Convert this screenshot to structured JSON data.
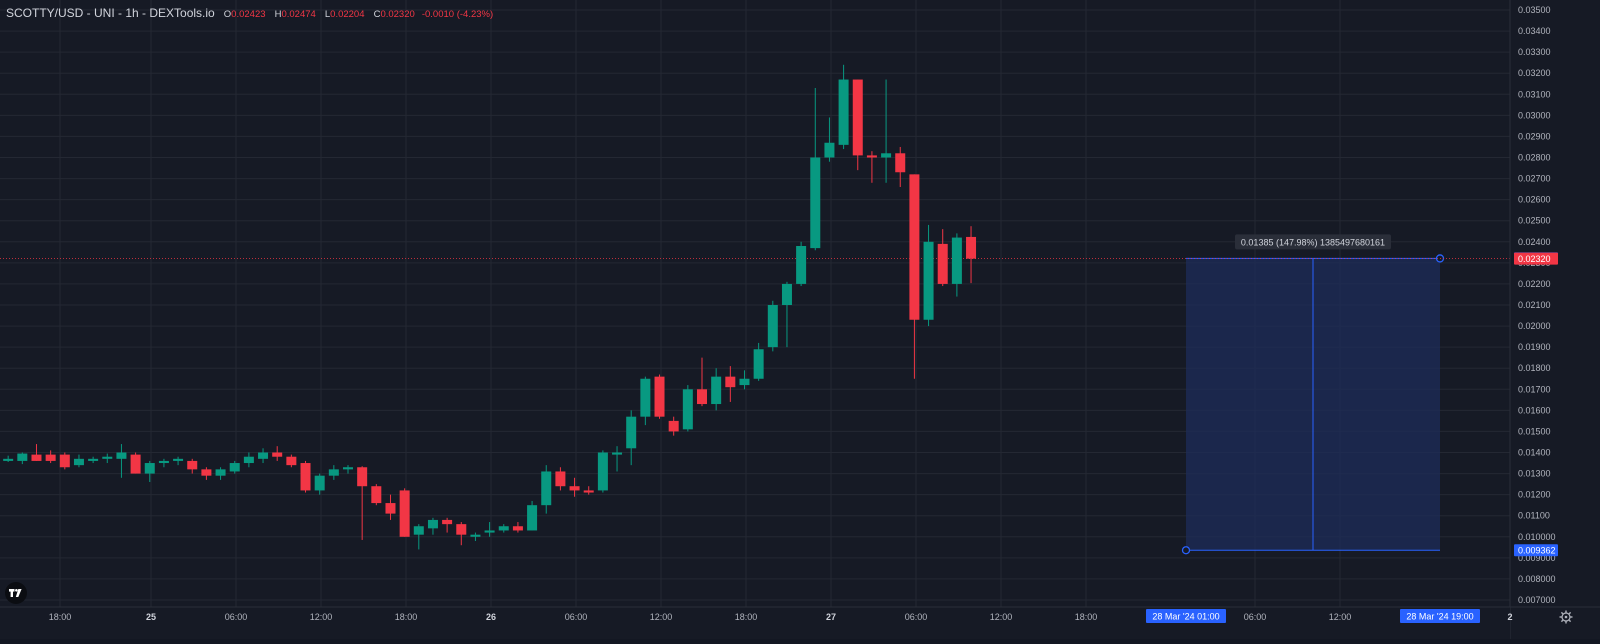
{
  "legend": {
    "symbol": "SCOTTY/USD - UNI - 1h - DEXTools.io",
    "open_label": "O",
    "open": "0.02423",
    "high_label": "H",
    "high": "0.02474",
    "low_label": "L",
    "low": "0.02204",
    "close_label": "C",
    "close": "0.02320",
    "change": "-0.0010 (-4.23%)"
  },
  "colors": {
    "background": "#161a25",
    "grid": "#242833",
    "up": "#089981",
    "down": "#f23645",
    "text": "#b2b5be",
    "tool_blue": "#2962ff"
  },
  "price_scale": {
    "labels": [
      "0.03500",
      "0.03400",
      "0.03300",
      "0.03200",
      "0.03100",
      "0.03000",
      "0.02900",
      "0.02800",
      "0.02700",
      "0.02600",
      "0.02500",
      "0.02400",
      "0.02300",
      "0.02200",
      "0.02100",
      "0.02000",
      "0.01900",
      "0.01800",
      "0.01700",
      "0.01600",
      "0.01500",
      "0.01400",
      "0.01300",
      "0.01200",
      "0.01100",
      "0.010000",
      "0.009000",
      "0.008000",
      "0.007000"
    ],
    "last_price": "0.02320",
    "tool_top": "0.02321",
    "tool_bottom": "0.009362"
  },
  "time_axis": {
    "labels": [
      "18:00",
      "25",
      "06:00",
      "12:00",
      "18:00",
      "26",
      "06:00",
      "12:00",
      "18:00",
      "27",
      "06:00",
      "12:00",
      "18:00",
      "06:00",
      "12:00",
      "2"
    ],
    "range_start": "28 Mar '24  01:00",
    "range_end": "28 Mar '24  19:00"
  },
  "measure_tool": {
    "label": "0.01385 (147.98%) 1385497680161"
  },
  "icons": {
    "logo": "tradingview-logo",
    "settings": "gear-icon"
  },
  "chart_data": {
    "type": "candlestick",
    "title": "SCOTTY/USD - UNI - 1h - DEXTools.io",
    "ylim": [
      0.0068,
      0.0354
    ],
    "x_start": "24 Mar 12:00",
    "interval": "1h",
    "candles": [
      {
        "o": 0.0138,
        "h": 0.014,
        "l": 0.0134,
        "c": 0.0136
      },
      {
        "o": 0.0136,
        "h": 0.01385,
        "l": 0.01355,
        "c": 0.0137
      },
      {
        "o": 0.0136,
        "h": 0.014,
        "l": 0.01345,
        "c": 0.01395
      },
      {
        "o": 0.0139,
        "h": 0.0144,
        "l": 0.0136,
        "c": 0.0136
      },
      {
        "o": 0.0139,
        "h": 0.0141,
        "l": 0.0135,
        "c": 0.0136
      },
      {
        "o": 0.0139,
        "h": 0.014,
        "l": 0.0132,
        "c": 0.0133
      },
      {
        "o": 0.0134,
        "h": 0.0139,
        "l": 0.0133,
        "c": 0.0137
      },
      {
        "o": 0.0136,
        "h": 0.0138,
        "l": 0.0135,
        "c": 0.0137
      },
      {
        "o": 0.0137,
        "h": 0.01395,
        "l": 0.0135,
        "c": 0.0138
      },
      {
        "o": 0.0137,
        "h": 0.0144,
        "l": 0.0128,
        "c": 0.014
      },
      {
        "o": 0.0139,
        "h": 0.014,
        "l": 0.013,
        "c": 0.013
      },
      {
        "o": 0.013,
        "h": 0.0136,
        "l": 0.0126,
        "c": 0.0135
      },
      {
        "o": 0.0135,
        "h": 0.0137,
        "l": 0.0133,
        "c": 0.0136
      },
      {
        "o": 0.0136,
        "h": 0.0138,
        "l": 0.0134,
        "c": 0.0137
      },
      {
        "o": 0.0136,
        "h": 0.0137,
        "l": 0.013,
        "c": 0.0132
      },
      {
        "o": 0.0132,
        "h": 0.0133,
        "l": 0.0127,
        "c": 0.0129
      },
      {
        "o": 0.0129,
        "h": 0.0133,
        "l": 0.0127,
        "c": 0.0132
      },
      {
        "o": 0.0131,
        "h": 0.0136,
        "l": 0.013,
        "c": 0.0135
      },
      {
        "o": 0.0135,
        "h": 0.014,
        "l": 0.0133,
        "c": 0.0138
      },
      {
        "o": 0.0137,
        "h": 0.0142,
        "l": 0.0135,
        "c": 0.014
      },
      {
        "o": 0.014,
        "h": 0.0143,
        "l": 0.0136,
        "c": 0.0138
      },
      {
        "o": 0.0138,
        "h": 0.0139,
        "l": 0.0133,
        "c": 0.0134
      },
      {
        "o": 0.0135,
        "h": 0.0136,
        "l": 0.0121,
        "c": 0.0122
      },
      {
        "o": 0.0122,
        "h": 0.013,
        "l": 0.012,
        "c": 0.0129
      },
      {
        "o": 0.0129,
        "h": 0.0134,
        "l": 0.0127,
        "c": 0.0132
      },
      {
        "o": 0.0132,
        "h": 0.0134,
        "l": 0.013,
        "c": 0.0133
      },
      {
        "o": 0.0133,
        "h": 0.01335,
        "l": 0.00985,
        "c": 0.0124
      },
      {
        "o": 0.0124,
        "h": 0.0125,
        "l": 0.0115,
        "c": 0.0116
      },
      {
        "o": 0.0116,
        "h": 0.012,
        "l": 0.0108,
        "c": 0.0111
      },
      {
        "o": 0.0122,
        "h": 0.0123,
        "l": 0.01,
        "c": 0.01
      },
      {
        "o": 0.0101,
        "h": 0.0106,
        "l": 0.0094,
        "c": 0.0105
      },
      {
        "o": 0.0104,
        "h": 0.0109,
        "l": 0.0101,
        "c": 0.0108
      },
      {
        "o": 0.0108,
        "h": 0.0109,
        "l": 0.0102,
        "c": 0.0106
      },
      {
        "o": 0.0106,
        "h": 0.0107,
        "l": 0.0096,
        "c": 0.0101
      },
      {
        "o": 0.01,
        "h": 0.0102,
        "l": 0.0098,
        "c": 0.0101
      },
      {
        "o": 0.0102,
        "h": 0.0107,
        "l": 0.01,
        "c": 0.0103
      },
      {
        "o": 0.0103,
        "h": 0.0106,
        "l": 0.0102,
        "c": 0.0105
      },
      {
        "o": 0.0105,
        "h": 0.0107,
        "l": 0.0102,
        "c": 0.0103
      },
      {
        "o": 0.0103,
        "h": 0.0117,
        "l": 0.0103,
        "c": 0.0115
      },
      {
        "o": 0.0115,
        "h": 0.0134,
        "l": 0.0111,
        "c": 0.0131
      },
      {
        "o": 0.0131,
        "h": 0.0133,
        "l": 0.0122,
        "c": 0.0124
      },
      {
        "o": 0.0124,
        "h": 0.0128,
        "l": 0.0119,
        "c": 0.0122
      },
      {
        "o": 0.0122,
        "h": 0.0124,
        "l": 0.012,
        "c": 0.0121
      },
      {
        "o": 0.0122,
        "h": 0.0141,
        "l": 0.0121,
        "c": 0.014
      },
      {
        "o": 0.0139,
        "h": 0.0143,
        "l": 0.0131,
        "c": 0.014
      },
      {
        "o": 0.0142,
        "h": 0.016,
        "l": 0.0134,
        "c": 0.0157
      },
      {
        "o": 0.0157,
        "h": 0.0176,
        "l": 0.0153,
        "c": 0.0175
      },
      {
        "o": 0.0176,
        "h": 0.0177,
        "l": 0.0156,
        "c": 0.0157
      },
      {
        "o": 0.0155,
        "h": 0.0157,
        "l": 0.0148,
        "c": 0.015
      },
      {
        "o": 0.0151,
        "h": 0.0172,
        "l": 0.015,
        "c": 0.017
      },
      {
        "o": 0.017,
        "h": 0.0185,
        "l": 0.0162,
        "c": 0.0163
      },
      {
        "o": 0.0163,
        "h": 0.018,
        "l": 0.016,
        "c": 0.0176
      },
      {
        "o": 0.0176,
        "h": 0.0181,
        "l": 0.0164,
        "c": 0.0171
      },
      {
        "o": 0.0172,
        "h": 0.0179,
        "l": 0.017,
        "c": 0.0175
      },
      {
        "o": 0.0175,
        "h": 0.0192,
        "l": 0.0174,
        "c": 0.0189
      },
      {
        "o": 0.019,
        "h": 0.0212,
        "l": 0.0188,
        "c": 0.021
      },
      {
        "o": 0.021,
        "h": 0.0221,
        "l": 0.019,
        "c": 0.022
      },
      {
        "o": 0.022,
        "h": 0.024,
        "l": 0.0219,
        "c": 0.0238
      },
      {
        "o": 0.0237,
        "h": 0.0313,
        "l": 0.0236,
        "c": 0.028
      },
      {
        "o": 0.028,
        "h": 0.0299,
        "l": 0.0278,
        "c": 0.0287
      },
      {
        "o": 0.0286,
        "h": 0.0324,
        "l": 0.0284,
        "c": 0.0317
      },
      {
        "o": 0.0317,
        "h": 0.0317,
        "l": 0.0274,
        "c": 0.0281
      },
      {
        "o": 0.0281,
        "h": 0.0283,
        "l": 0.0268,
        "c": 0.028
      },
      {
        "o": 0.028,
        "h": 0.0317,
        "l": 0.0268,
        "c": 0.0282
      },
      {
        "o": 0.0282,
        "h": 0.0285,
        "l": 0.0266,
        "c": 0.0273
      },
      {
        "o": 0.0272,
        "h": 0.0272,
        "l": 0.0175,
        "c": 0.0203
      },
      {
        "o": 0.0203,
        "h": 0.0248,
        "l": 0.02,
        "c": 0.024
      },
      {
        "o": 0.0239,
        "h": 0.0246,
        "l": 0.0219,
        "c": 0.022
      },
      {
        "o": 0.022,
        "h": 0.0244,
        "l": 0.0214,
        "c": 0.0242
      },
      {
        "o": 0.02423,
        "h": 0.02474,
        "l": 0.02204,
        "c": 0.0232
      }
    ],
    "last_price": 0.0232
  }
}
